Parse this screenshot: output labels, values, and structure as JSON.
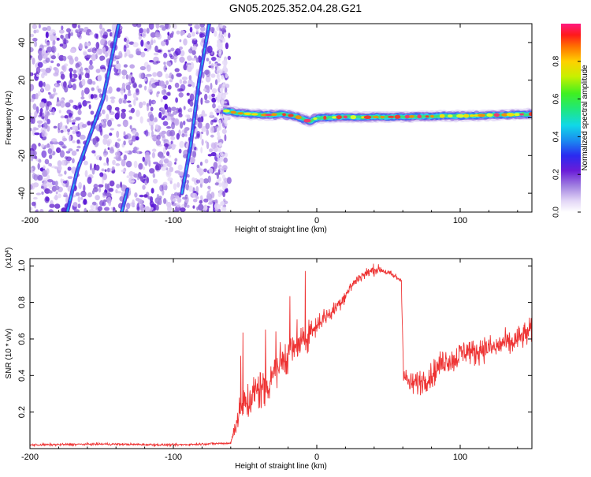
{
  "title": "GN05.2025.352.04.28.G21",
  "chart_data": [
    {
      "type": "heatmap",
      "title": "GN05.2025.352.04.28.G21",
      "xlabel": "Height of straight line (km)",
      "ylabel": "Frequency (Hz)",
      "xlim": [
        -200,
        150
      ],
      "ylim": [
        -50,
        50
      ],
      "x_ticks": [
        -200,
        -100,
        0,
        100
      ],
      "y_ticks": [
        -40,
        -20,
        0,
        20,
        40
      ],
      "colorbar": {
        "label": "Normalized spectral amplitude",
        "range": [
          0,
          1
        ],
        "ticks": [
          "0.0",
          "0.2",
          "0.4",
          "0.6",
          "0.8"
        ]
      },
      "features": {
        "noise_region_x": [
          -200,
          -65
        ],
        "diagonal_tracks": [
          {
            "name": "track-1",
            "points": [
              [
                -174,
                -50
              ],
              [
                -167,
                -28
              ],
              [
                -149,
                10
              ],
              [
                -138,
                50
              ]
            ]
          },
          {
            "name": "track-2",
            "points": [
              [
                -136,
                -50
              ],
              [
                -132,
                -38
              ]
            ]
          },
          {
            "name": "track-3",
            "points": [
              [
                -94,
                -40
              ],
              [
                -88,
                -15
              ],
              [
                -82,
                20
              ],
              [
                -75,
                50
              ]
            ]
          }
        ],
        "main_line": {
          "x": [
            -65,
            -55,
            -45,
            -35,
            -25,
            -15,
            -5,
            0,
            10,
            20,
            30,
            40,
            50,
            60,
            70,
            80,
            90,
            100,
            110,
            120,
            130,
            140,
            150
          ],
          "freq": [
            4,
            2.5,
            2,
            1.5,
            2,
            1,
            -2,
            0,
            0.2,
            0.5,
            0.3,
            0.4,
            0.5,
            0.6,
            0.7,
            0.8,
            1,
            1,
            1.2,
            1.5,
            1.6,
            1.8,
            2
          ]
        }
      }
    },
    {
      "type": "line",
      "xlabel": "Height of straight line (km)",
      "ylabel": "SNR (10 * v/v)",
      "y_multiplier": "(x10^4)",
      "y_multiplier_base": "(x10",
      "y_multiplier_exp": "4",
      "y_multiplier_tail": ")",
      "xlim": [
        -200,
        150
      ],
      "ylim": [
        0,
        1.04
      ],
      "x_ticks": [
        -200,
        -100,
        0,
        100
      ],
      "y_ticks": [
        0.2,
        0.4,
        0.6,
        0.8,
        1.0
      ],
      "series": [
        {
          "name": "SNR",
          "color": "#ee3333",
          "x": [
            -200,
            -150,
            -100,
            -60,
            -55,
            -50,
            -45,
            -40,
            -35,
            -30,
            -25,
            -20,
            -15,
            -10,
            -5,
            0,
            5,
            10,
            15,
            20,
            25,
            30,
            35,
            40,
            45,
            50,
            55,
            59,
            60,
            65,
            70,
            75,
            80,
            85,
            90,
            95,
            100,
            105,
            110,
            115,
            120,
            125,
            130,
            135,
            140,
            145,
            150
          ],
          "values": [
            0.02,
            0.025,
            0.02,
            0.03,
            0.18,
            0.25,
            0.28,
            0.33,
            0.34,
            0.43,
            0.47,
            0.52,
            0.55,
            0.58,
            0.63,
            0.68,
            0.72,
            0.74,
            0.79,
            0.84,
            0.9,
            0.94,
            0.96,
            0.98,
            0.98,
            0.96,
            0.94,
            0.92,
            0.41,
            0.35,
            0.36,
            0.38,
            0.4,
            0.45,
            0.49,
            0.48,
            0.52,
            0.54,
            0.52,
            0.55,
            0.55,
            0.55,
            0.58,
            0.57,
            0.6,
            0.62,
            0.65
          ],
          "noise": [
            0.006,
            0.006,
            0.006,
            0.006,
            0.08,
            0.1,
            0.12,
            0.12,
            0.12,
            0.12,
            0.11,
            0.1,
            0.09,
            0.08,
            0.07,
            0.06,
            0.05,
            0.04,
            0.04,
            0.04,
            0.03,
            0.03,
            0.03,
            0.03,
            0.02,
            0.02,
            0.02,
            0.02,
            0.05,
            0.06,
            0.07,
            0.07,
            0.07,
            0.07,
            0.07,
            0.07,
            0.07,
            0.07,
            0.07,
            0.07,
            0.07,
            0.07,
            0.07,
            0.07,
            0.07,
            0.07,
            0.07
          ]
        }
      ]
    }
  ]
}
